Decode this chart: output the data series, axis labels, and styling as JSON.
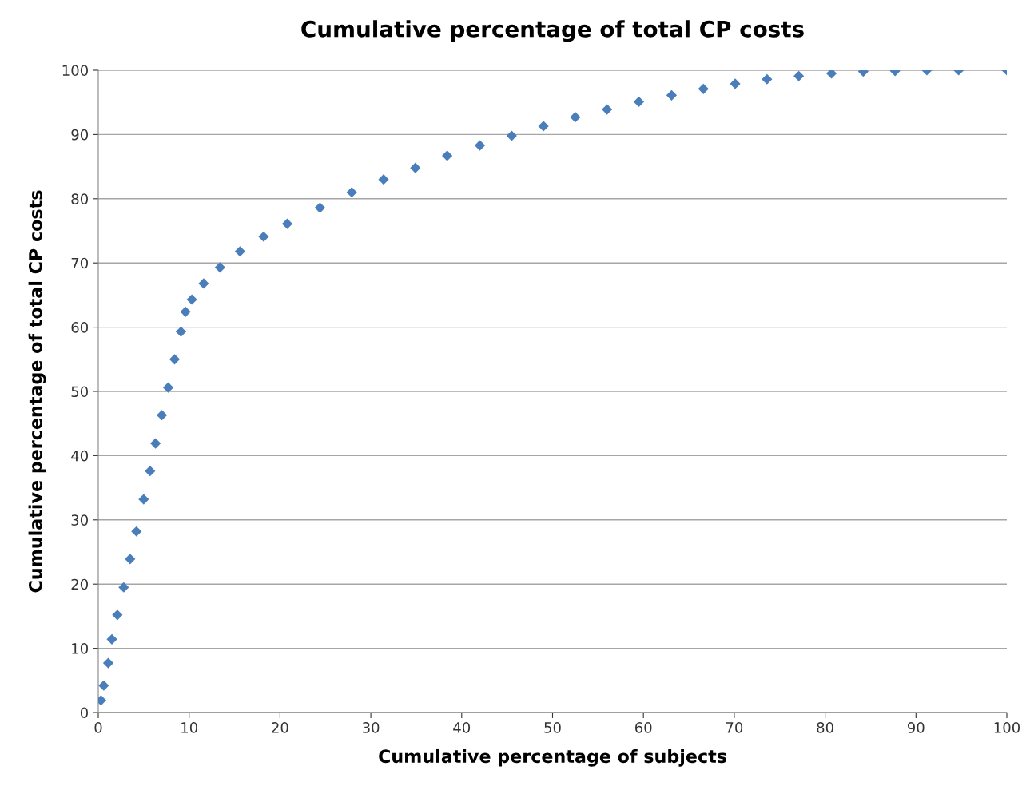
{
  "chart_data": {
    "type": "scatter",
    "title": "Cumulative percentage of total CP costs",
    "xlabel": "Cumulative percentage of subjects",
    "ylabel": "Cumulative percentage of total CP costs",
    "marker": "diamond",
    "grid": "y",
    "xlim": [
      0,
      100
    ],
    "ylim": [
      0,
      100
    ],
    "xticks": [
      0,
      10,
      20,
      30,
      40,
      50,
      60,
      70,
      80,
      90,
      100
    ],
    "yticks": [
      0,
      10,
      20,
      30,
      40,
      50,
      60,
      70,
      80,
      90,
      100
    ],
    "series": [
      {
        "color": "#4a7ebb",
        "x": [
          0.3,
          0.6,
          1.1,
          1.5,
          2.1,
          2.8,
          3.5,
          4.2,
          5.0,
          5.7,
          6.3,
          7.0,
          7.7,
          8.4,
          9.1,
          9.6,
          10.3,
          11.6,
          13.4,
          15.6,
          18.2,
          20.8,
          24.4,
          27.9,
          31.4,
          34.9,
          38.4,
          42.0,
          45.5,
          49.0,
          52.5,
          56.0,
          59.5,
          63.1,
          66.6,
          70.1,
          73.6,
          77.1,
          80.7,
          84.2,
          87.7,
          91.2,
          94.7,
          100
        ],
        "values": [
          1.9,
          4.2,
          7.7,
          11.4,
          15.2,
          19.5,
          23.9,
          28.2,
          33.2,
          37.6,
          41.9,
          46.3,
          50.6,
          55.0,
          59.3,
          62.4,
          64.3,
          66.8,
          69.3,
          71.8,
          74.1,
          76.1,
          78.6,
          81.0,
          83.0,
          84.8,
          86.7,
          88.3,
          89.8,
          91.3,
          92.7,
          93.9,
          95.1,
          96.1,
          97.1,
          97.9,
          98.6,
          99.1,
          99.5,
          99.8,
          99.9,
          100,
          100,
          100
        ]
      }
    ]
  }
}
